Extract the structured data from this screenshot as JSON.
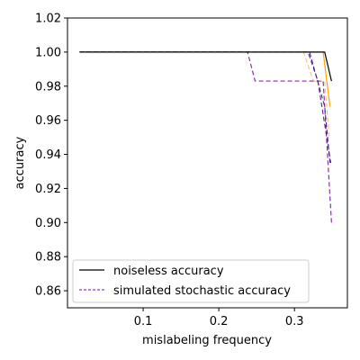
{
  "chart_data": {
    "type": "line",
    "title": "",
    "xlabel": "mislabeling frequency",
    "ylabel": "accuracy",
    "xlim": [
      0.0,
      0.37
    ],
    "ylim": [
      0.85,
      1.02
    ],
    "xticks": [
      0.1,
      0.2,
      0.3
    ],
    "xtick_labels": [
      "0.1",
      "0.2",
      "0.3"
    ],
    "yticks": [
      0.86,
      0.88,
      0.9,
      0.92,
      0.94,
      0.96,
      0.98,
      1.0,
      1.02
    ],
    "ytick_labels": [
      "0.86",
      "0.88",
      "0.90",
      "0.92",
      "0.94",
      "0.96",
      "0.98",
      "1.00",
      "1.02"
    ],
    "grid": false,
    "legend_position": "lower-left",
    "legend": [
      {
        "label": "noiseless accuracy",
        "color": "#000000",
        "style": "solid"
      },
      {
        "label": "simulated stochastic accuracy",
        "color": "#7b00a8",
        "style": "dashed"
      }
    ],
    "series": [
      {
        "color": "#ffa500",
        "dash": "solid",
        "width": 1.2,
        "x": [
          0.016,
          0.338,
          0.347
        ],
        "y": [
          1.0,
          1.0,
          0.968
        ]
      },
      {
        "color": "#fdbb5a",
        "dash": "dashed",
        "width": 1.0,
        "x": [
          0.016,
          0.312,
          0.325,
          0.34,
          0.346
        ],
        "y": [
          1.0,
          1.0,
          0.983,
          0.983,
          0.95
        ]
      },
      {
        "color": "#8b2fa6",
        "dash": "dashed",
        "width": 1.2,
        "x": [
          0.016,
          0.238,
          0.248,
          0.338,
          0.349
        ],
        "y": [
          1.0,
          1.0,
          0.983,
          0.983,
          0.9
        ]
      },
      {
        "color": "#5a1f8f",
        "dash": "dashed",
        "width": 1.1,
        "x": [
          0.016,
          0.318,
          0.331,
          0.348
        ],
        "y": [
          1.0,
          1.0,
          0.983,
          0.935
        ]
      },
      {
        "color": "#3d1890",
        "dash": "dashed",
        "width": 1.0,
        "x": [
          0.016,
          0.32,
          0.34,
          0.347
        ],
        "y": [
          1.0,
          1.0,
          0.968,
          0.935
        ]
      },
      {
        "color": "#000000",
        "dash": "solid",
        "width": 1.2,
        "x": [
          0.016,
          0.34,
          0.349
        ],
        "y": [
          1.0,
          1.0,
          0.983
        ]
      }
    ]
  }
}
